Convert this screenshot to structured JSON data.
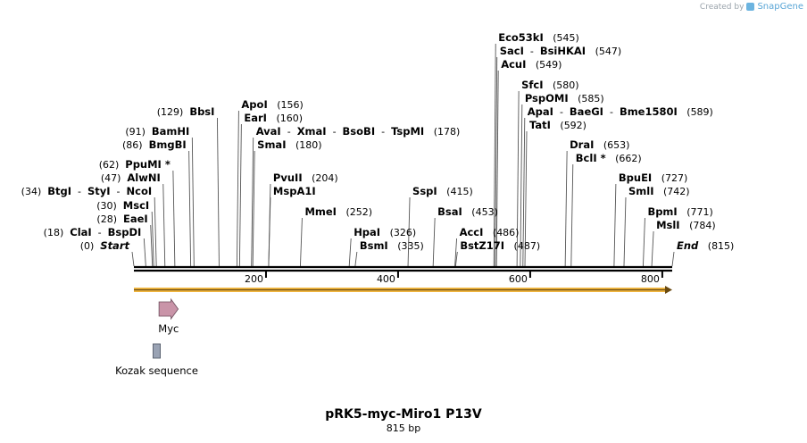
{
  "credit": {
    "prefix": "Created by",
    "brand": "SnapGene"
  },
  "map": {
    "title": "pRK5-myc-Miro1 P13V",
    "length_label": "815 bp",
    "length_bp": 815,
    "ruler_ticks": [
      {
        "pos": 200,
        "label": "200"
      },
      {
        "pos": 400,
        "label": "400"
      },
      {
        "pos": 600,
        "label": "600"
      },
      {
        "pos": 800,
        "label": "800"
      }
    ]
  },
  "sites": [
    {
      "pos": 0,
      "num": "(0)",
      "parts": [
        "Start"
      ],
      "italic": true,
      "side": "left"
    },
    {
      "pos": 18,
      "num": "(18)",
      "parts": [
        "ClaI",
        "BspDI"
      ],
      "side": "left"
    },
    {
      "pos": 28,
      "num": "(28)",
      "parts": [
        "EaeI"
      ],
      "side": "left"
    },
    {
      "pos": 30,
      "num": "(30)",
      "parts": [
        "MscI"
      ],
      "side": "left"
    },
    {
      "pos": 34,
      "num": "(34)",
      "parts": [
        "BtgI",
        "StyI",
        "NcoI"
      ],
      "side": "left"
    },
    {
      "pos": 47,
      "num": "(47)",
      "parts": [
        "AlwNI"
      ],
      "side": "left"
    },
    {
      "pos": 62,
      "num": "(62)",
      "parts": [
        "PpuMI *"
      ],
      "side": "left"
    },
    {
      "pos": 86,
      "num": "(86)",
      "parts": [
        "BmgBI"
      ],
      "side": "left"
    },
    {
      "pos": 91,
      "num": "(91)",
      "parts": [
        "BamHI"
      ],
      "side": "left"
    },
    {
      "pos": 129,
      "num": "(129)",
      "parts": [
        "BbsI"
      ],
      "side": "left"
    },
    {
      "pos": 156,
      "num": "(156)",
      "parts": [
        "ApoI"
      ],
      "side": "right"
    },
    {
      "pos": 160,
      "num": "(160)",
      "parts": [
        "EarI"
      ],
      "side": "right"
    },
    {
      "pos": 178,
      "num": "(178)",
      "parts": [
        "AvaI",
        "XmaI",
        "BsoBI",
        "TspMI"
      ],
      "side": "right"
    },
    {
      "pos": 180,
      "num": "(180)",
      "parts": [
        "SmaI"
      ],
      "side": "right"
    },
    {
      "pos": 204,
      "num": "(204)",
      "parts": [
        "PvuII"
      ],
      "side": "right"
    },
    {
      "pos": 204,
      "num": "",
      "parts": [
        "MspA1I"
      ],
      "side": "right"
    },
    {
      "pos": 252,
      "num": "(252)",
      "parts": [
        "MmeI"
      ],
      "side": "right"
    },
    {
      "pos": 326,
      "num": "(326)",
      "parts": [
        "HpaI"
      ],
      "side": "right"
    },
    {
      "pos": 335,
      "num": "(335)",
      "parts": [
        "BsmI"
      ],
      "side": "right"
    },
    {
      "pos": 415,
      "num": "(415)",
      "parts": [
        "SspI"
      ],
      "side": "right"
    },
    {
      "pos": 453,
      "num": "(453)",
      "parts": [
        "BsaI"
      ],
      "side": "right"
    },
    {
      "pos": 486,
      "num": "(486)",
      "parts": [
        "AccI"
      ],
      "side": "right"
    },
    {
      "pos": 487,
      "num": "(487)",
      "parts": [
        "BstZ17I"
      ],
      "side": "right"
    },
    {
      "pos": 545,
      "num": "(545)",
      "parts": [
        "Eco53kI"
      ],
      "side": "right"
    },
    {
      "pos": 547,
      "num": "(547)",
      "parts": [
        "SacI",
        "BsiHKAI"
      ],
      "side": "right"
    },
    {
      "pos": 549,
      "num": "(549)",
      "parts": [
        "AcuI"
      ],
      "side": "right"
    },
    {
      "pos": 580,
      "num": "(580)",
      "parts": [
        "SfcI"
      ],
      "side": "right"
    },
    {
      "pos": 585,
      "num": "(585)",
      "parts": [
        "PspOMI"
      ],
      "side": "right"
    },
    {
      "pos": 589,
      "num": "(589)",
      "parts": [
        "ApaI",
        "BaeGI",
        "Bme1580I"
      ],
      "side": "right"
    },
    {
      "pos": 592,
      "num": "(592)",
      "parts": [
        "TatI"
      ],
      "side": "right"
    },
    {
      "pos": 653,
      "num": "(653)",
      "parts": [
        "DraI"
      ],
      "side": "right"
    },
    {
      "pos": 662,
      "num": "(662)",
      "parts": [
        "BclI *"
      ],
      "side": "right"
    },
    {
      "pos": 727,
      "num": "(727)",
      "parts": [
        "BpuEI"
      ],
      "side": "right"
    },
    {
      "pos": 742,
      "num": "(742)",
      "parts": [
        "SmlI"
      ],
      "side": "right"
    },
    {
      "pos": 771,
      "num": "(771)",
      "parts": [
        "BpmI"
      ],
      "side": "right"
    },
    {
      "pos": 784,
      "num": "(784)",
      "parts": [
        "MslI"
      ],
      "side": "right"
    },
    {
      "pos": 815,
      "num": "(815)",
      "parts": [
        "End"
      ],
      "italic": true,
      "side": "right"
    }
  ],
  "features": [
    {
      "name": "Myc",
      "start": 38,
      "end": 67,
      "shape": "arrow",
      "color": "#c994a8"
    },
    {
      "name": "Kozak sequence",
      "start": 29,
      "end": 40,
      "shape": "box",
      "color": "#9aa3b4"
    }
  ],
  "orf": {
    "start": 0,
    "end": 815,
    "color": "#f0b640",
    "direction": "forward"
  }
}
